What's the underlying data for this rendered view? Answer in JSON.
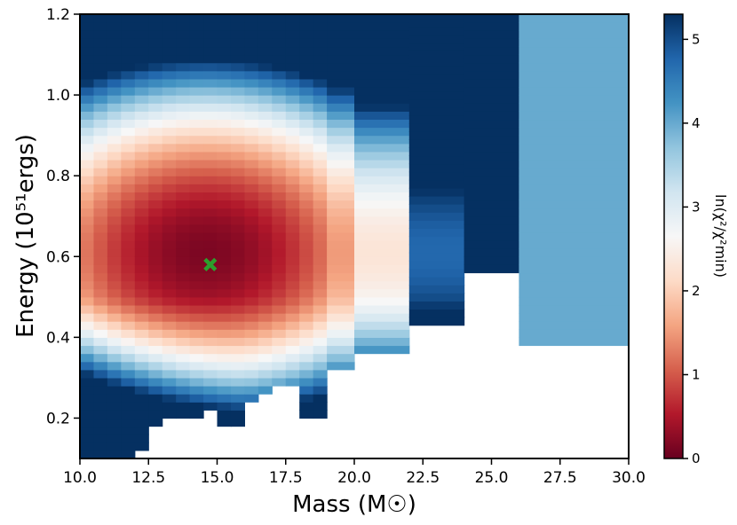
{
  "chart_data": {
    "type": "heatmap",
    "title": "",
    "xlabel": "Mass (M☉)",
    "ylabel": "Energy (10⁵¹ergs)",
    "colorbar_label": "ln(χ²/χ²min)",
    "xlim": [
      10.0,
      30.0
    ],
    "ylim": [
      0.1,
      1.2
    ],
    "x_ticks": [
      "10.0",
      "12.5",
      "15.0",
      "17.5",
      "20.0",
      "22.5",
      "25.0",
      "27.5",
      "30.0"
    ],
    "y_ticks": [
      "0.2",
      "0.4",
      "0.6",
      "0.8",
      "1.0",
      "1.2"
    ],
    "colorbar_ticks": [
      "0",
      "1",
      "2",
      "3",
      "4",
      "5"
    ],
    "color_range": [
      0,
      5.3
    ],
    "colormap": "RdBu",
    "colors": {
      "low": "#67001f",
      "mid": "#f7f7f7",
      "high": "#053061"
    },
    "best_fit": {
      "mass": 14.75,
      "energy": 0.58,
      "marker": "x",
      "color": "#2ca02c"
    },
    "columns": [
      {
        "x0": 10.0,
        "x1": 10.5,
        "ymin": 0.1,
        "ymax": 1.2
      },
      {
        "x0": 10.5,
        "x1": 11.0,
        "ymin": 0.1,
        "ymax": 1.2
      },
      {
        "x0": 11.0,
        "x1": 11.5,
        "ymin": 0.1,
        "ymax": 1.2
      },
      {
        "x0": 11.5,
        "x1": 12.0,
        "ymin": 0.1,
        "ymax": 1.2
      },
      {
        "x0": 12.0,
        "x1": 12.5,
        "ymin": 0.12,
        "ymax": 1.2
      },
      {
        "x0": 12.5,
        "x1": 13.0,
        "ymin": 0.18,
        "ymax": 1.2
      },
      {
        "x0": 13.0,
        "x1": 13.5,
        "ymin": 0.2,
        "ymax": 1.2
      },
      {
        "x0": 13.5,
        "x1": 14.0,
        "ymin": 0.2,
        "ymax": 1.2
      },
      {
        "x0": 14.0,
        "x1": 14.5,
        "ymin": 0.2,
        "ymax": 1.2
      },
      {
        "x0": 14.5,
        "x1": 15.0,
        "ymin": 0.22,
        "ymax": 1.2
      },
      {
        "x0": 15.0,
        "x1": 15.5,
        "ymin": 0.18,
        "ymax": 1.2
      },
      {
        "x0": 15.5,
        "x1": 16.0,
        "ymin": 0.18,
        "ymax": 1.2
      },
      {
        "x0": 16.0,
        "x1": 16.5,
        "ymin": 0.24,
        "ymax": 1.2
      },
      {
        "x0": 16.5,
        "x1": 17.0,
        "ymin": 0.26,
        "ymax": 1.2
      },
      {
        "x0": 17.0,
        "x1": 17.5,
        "ymin": 0.28,
        "ymax": 1.2
      },
      {
        "x0": 17.5,
        "x1": 18.0,
        "ymin": 0.28,
        "ymax": 1.2
      },
      {
        "x0": 18.0,
        "x1": 18.5,
        "ymin": 0.2,
        "ymax": 1.2
      },
      {
        "x0": 18.5,
        "x1": 19.0,
        "ymin": 0.2,
        "ymax": 1.2
      },
      {
        "x0": 19.0,
        "x1": 20.0,
        "ymin": 0.32,
        "ymax": 1.2
      },
      {
        "x0": 20.0,
        "x1": 22.0,
        "ymin": 0.36,
        "ymax": 1.2
      },
      {
        "x0": 22.0,
        "x1": 24.0,
        "ymin": 0.43,
        "ymax": 1.2
      },
      {
        "x0": 24.0,
        "x1": 26.0,
        "ymin": 0.56,
        "ymax": 1.2
      },
      {
        "x0": 26.0,
        "x1": 30.0,
        "ymin": 0.38,
        "ymax": 1.2
      }
    ]
  }
}
